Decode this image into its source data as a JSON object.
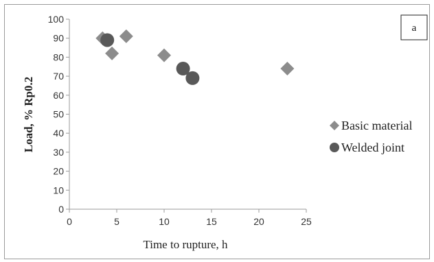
{
  "chart_data": {
    "type": "scatter",
    "panel_label": "a",
    "xlabel": "Time to rupture, h",
    "ylabel": "Load, % Rp0.2",
    "xlim": [
      0,
      25
    ],
    "ylim": [
      0,
      100
    ],
    "xticks": [
      0,
      5,
      10,
      15,
      20,
      25
    ],
    "yticks": [
      0,
      10,
      20,
      30,
      40,
      50,
      60,
      70,
      80,
      90,
      100
    ],
    "grid": false,
    "legend_position": "right",
    "series": [
      {
        "name": "Basic material",
        "marker": "diamond",
        "color": "#8c8c8c",
        "points": [
          {
            "x": 3.5,
            "y": 90
          },
          {
            "x": 4.5,
            "y": 82
          },
          {
            "x": 6,
            "y": 91
          },
          {
            "x": 10,
            "y": 81
          },
          {
            "x": 23,
            "y": 74
          }
        ]
      },
      {
        "name": "Welded joint",
        "marker": "circle",
        "color": "#595959",
        "points": [
          {
            "x": 4,
            "y": 89
          },
          {
            "x": 12,
            "y": 74
          },
          {
            "x": 13,
            "y": 69
          }
        ]
      }
    ]
  }
}
